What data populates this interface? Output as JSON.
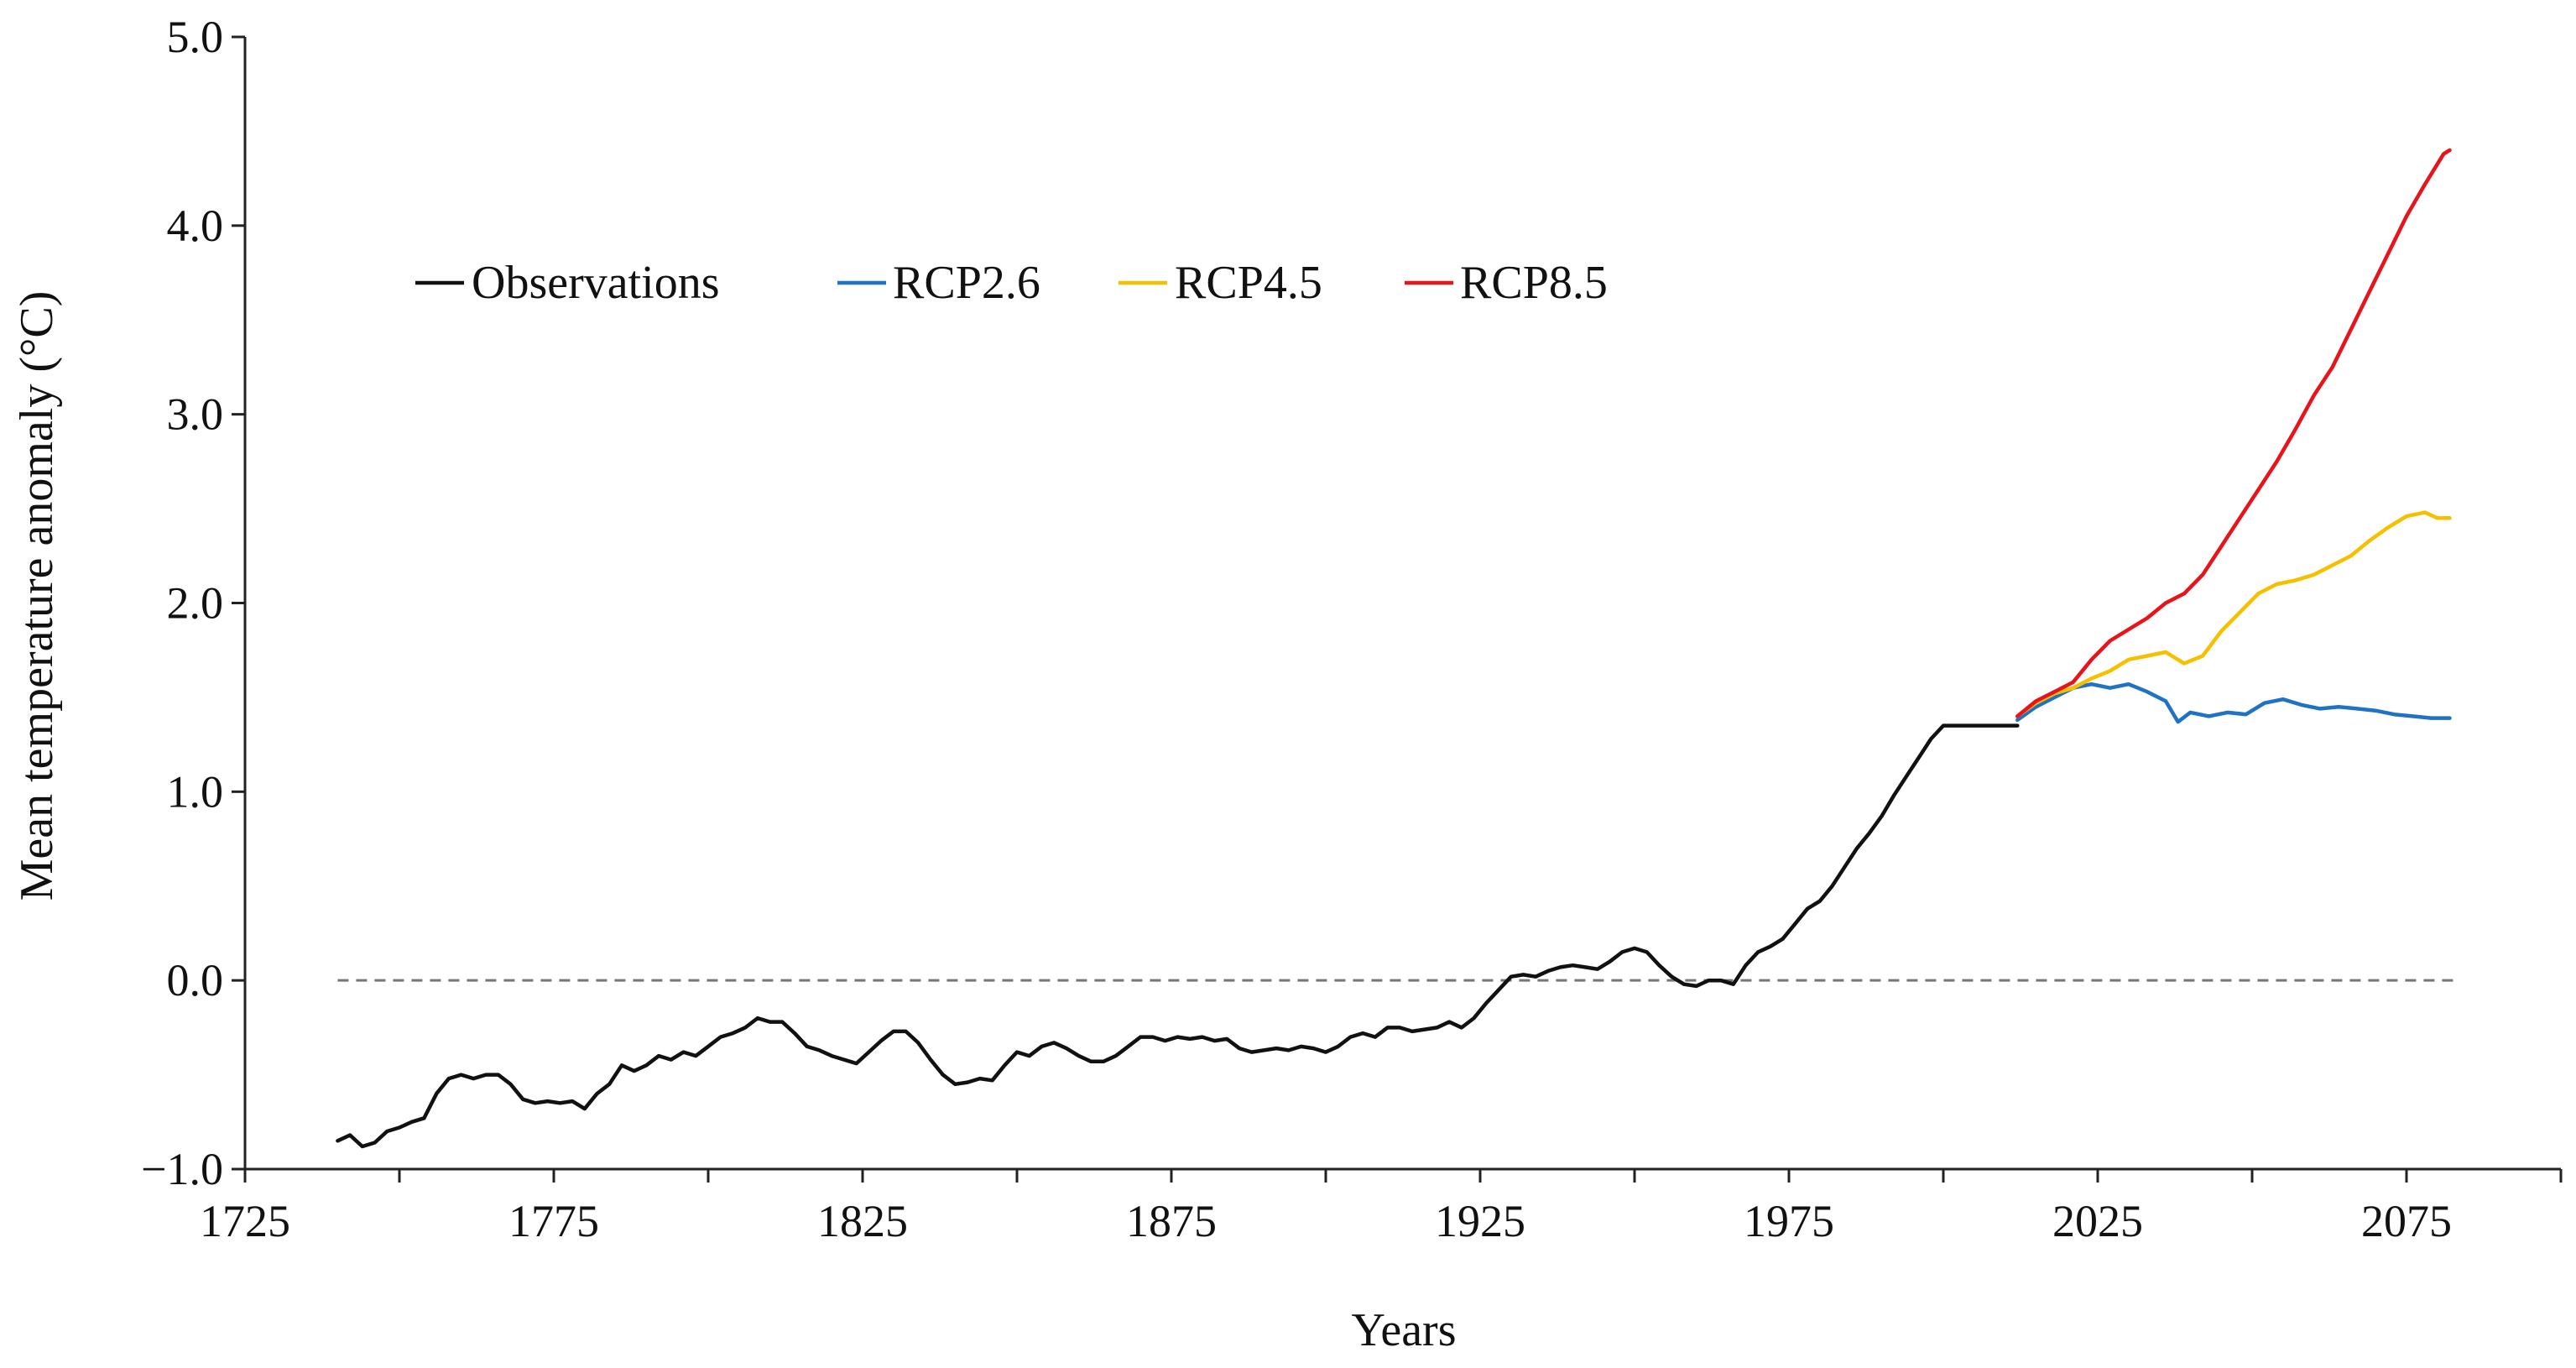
{
  "chart_data": {
    "type": "line",
    "title": "",
    "xlabel": "Years",
    "ylabel": "Mean temperature anomaly (°C)",
    "xlim": [
      1725,
      2100
    ],
    "ylim": [
      -1.0,
      5.0
    ],
    "x_ticks": [
      1725,
      1775,
      1825,
      1875,
      1925,
      1975,
      2025,
      2075
    ],
    "x_tick_labels": [
      "1725",
      "1775",
      "1825",
      "1875",
      "1925",
      "1975",
      "2025",
      "2075"
    ],
    "x_minor_ticks": [
      1750,
      1800,
      1850,
      1900,
      1950,
      2000,
      2050,
      2100
    ],
    "y_ticks": [
      -1.0,
      0.0,
      1.0,
      2.0,
      3.0,
      4.0,
      5.0
    ],
    "y_tick_labels": [
      "−1.0",
      "0.0",
      "1.0",
      "2.0",
      "3.0",
      "4.0",
      "5.0"
    ],
    "grid": false,
    "legend_position": "top-left",
    "reference_line": {
      "y": 0.0,
      "x_range": [
        1740,
        2083
      ],
      "style": "dashed",
      "color": "#777777"
    },
    "series": [
      {
        "name": "Observations",
        "color": "#111111",
        "x": [
          1740,
          1742,
          1744,
          1746,
          1748,
          1750,
          1752,
          1754,
          1756,
          1758,
          1760,
          1762,
          1764,
          1766,
          1768,
          1770,
          1772,
          1774,
          1776,
          1778,
          1780,
          1782,
          1784,
          1786,
          1788,
          1790,
          1792,
          1794,
          1796,
          1798,
          1800,
          1802,
          1804,
          1806,
          1808,
          1810,
          1812,
          1814,
          1816,
          1818,
          1820,
          1822,
          1824,
          1826,
          1828,
          1830,
          1832,
          1834,
          1836,
          1838,
          1840,
          1842,
          1844,
          1846,
          1848,
          1850,
          1852,
          1854,
          1856,
          1858,
          1860,
          1862,
          1864,
          1866,
          1868,
          1870,
          1872,
          1874,
          1876,
          1878,
          1880,
          1882,
          1884,
          1886,
          1888,
          1890,
          1892,
          1894,
          1896,
          1898,
          1900,
          1902,
          1904,
          1906,
          1908,
          1910,
          1912,
          1914,
          1916,
          1918,
          1920,
          1922,
          1924,
          1926,
          1928,
          1930,
          1932,
          1934,
          1936,
          1938,
          1940,
          1942,
          1944,
          1946,
          1948,
          1950,
          1952,
          1954,
          1956,
          1958,
          1960,
          1962,
          1964,
          1966,
          1968,
          1970,
          1972,
          1974,
          1976,
          1978,
          1980,
          1982,
          1984,
          1986,
          1988,
          1990,
          1992,
          1994,
          1996,
          1998,
          2000,
          2002,
          2004,
          2006,
          2008,
          2010,
          2012
        ],
        "values": [
          -0.85,
          -0.82,
          -0.88,
          -0.86,
          -0.8,
          -0.78,
          -0.75,
          -0.73,
          -0.6,
          -0.52,
          -0.5,
          -0.52,
          -0.5,
          -0.5,
          -0.55,
          -0.63,
          -0.65,
          -0.64,
          -0.65,
          -0.64,
          -0.68,
          -0.6,
          -0.55,
          -0.45,
          -0.48,
          -0.45,
          -0.4,
          -0.42,
          -0.38,
          -0.4,
          -0.35,
          -0.3,
          -0.28,
          -0.25,
          -0.2,
          -0.22,
          -0.22,
          -0.28,
          -0.35,
          -0.37,
          -0.4,
          -0.42,
          -0.44,
          -0.38,
          -0.32,
          -0.27,
          -0.27,
          -0.33,
          -0.42,
          -0.5,
          -0.55,
          -0.54,
          -0.52,
          -0.53,
          -0.45,
          -0.38,
          -0.4,
          -0.35,
          -0.33,
          -0.36,
          -0.4,
          -0.43,
          -0.43,
          -0.4,
          -0.35,
          -0.3,
          -0.3,
          -0.32,
          -0.3,
          -0.31,
          -0.3,
          -0.32,
          -0.31,
          -0.36,
          -0.38,
          -0.37,
          -0.36,
          -0.37,
          -0.35,
          -0.36,
          -0.38,
          -0.35,
          -0.3,
          -0.28,
          -0.3,
          -0.25,
          -0.25,
          -0.27,
          -0.26,
          -0.25,
          -0.22,
          -0.25,
          -0.2,
          -0.12,
          -0.05,
          0.02,
          0.03,
          0.02,
          0.05,
          0.07,
          0.08,
          0.07,
          0.06,
          0.1,
          0.15,
          0.17,
          0.15,
          0.08,
          0.02,
          -0.02,
          -0.03,
          0.0,
          0.0,
          -0.02,
          0.08,
          0.15,
          0.18,
          0.22,
          0.3,
          0.38,
          0.42,
          0.5,
          0.6,
          0.7,
          0.78,
          0.87,
          0.98,
          1.08,
          1.18,
          1.28,
          1.35,
          1.35,
          1.35,
          1.35,
          1.35,
          1.35,
          1.35
        ]
      },
      {
        "name": "RCP2.6",
        "color": "#1f72c4",
        "x": [
          2012,
          2015,
          2018,
          2021,
          2024,
          2027,
          2030,
          2033,
          2036,
          2038,
          2040,
          2043,
          2046,
          2049,
          2052,
          2055,
          2058,
          2061,
          2064,
          2067,
          2070,
          2073,
          2076,
          2079,
          2082
        ],
        "values": [
          1.38,
          1.45,
          1.5,
          1.55,
          1.57,
          1.55,
          1.57,
          1.53,
          1.48,
          1.37,
          1.42,
          1.4,
          1.42,
          1.41,
          1.47,
          1.49,
          1.46,
          1.44,
          1.45,
          1.44,
          1.43,
          1.41,
          1.4,
          1.39,
          1.39
        ]
      },
      {
        "name": "RCP4.5",
        "color": "#f5c000",
        "x": [
          2012,
          2015,
          2018,
          2021,
          2024,
          2027,
          2030,
          2033,
          2036,
          2039,
          2042,
          2045,
          2048,
          2051,
          2054,
          2057,
          2060,
          2063,
          2066,
          2069,
          2072,
          2075,
          2078,
          2080,
          2082
        ],
        "values": [
          1.4,
          1.47,
          1.52,
          1.55,
          1.6,
          1.64,
          1.7,
          1.72,
          1.74,
          1.68,
          1.72,
          1.85,
          1.95,
          2.05,
          2.1,
          2.12,
          2.15,
          2.2,
          2.25,
          2.33,
          2.4,
          2.46,
          2.48,
          2.45,
          2.45
        ]
      },
      {
        "name": "RCP8.5",
        "color": "#e8141c",
        "x": [
          2012,
          2015,
          2018,
          2021,
          2024,
          2027,
          2030,
          2033,
          2036,
          2039,
          2042,
          2045,
          2048,
          2051,
          2054,
          2057,
          2060,
          2063,
          2066,
          2069,
          2072,
          2075,
          2078,
          2081,
          2082
        ],
        "values": [
          1.4,
          1.48,
          1.53,
          1.58,
          1.7,
          1.8,
          1.86,
          1.92,
          2.0,
          2.05,
          2.15,
          2.3,
          2.45,
          2.6,
          2.75,
          2.92,
          3.1,
          3.25,
          3.45,
          3.65,
          3.85,
          4.05,
          4.22,
          4.38,
          4.4
        ]
      }
    ]
  }
}
